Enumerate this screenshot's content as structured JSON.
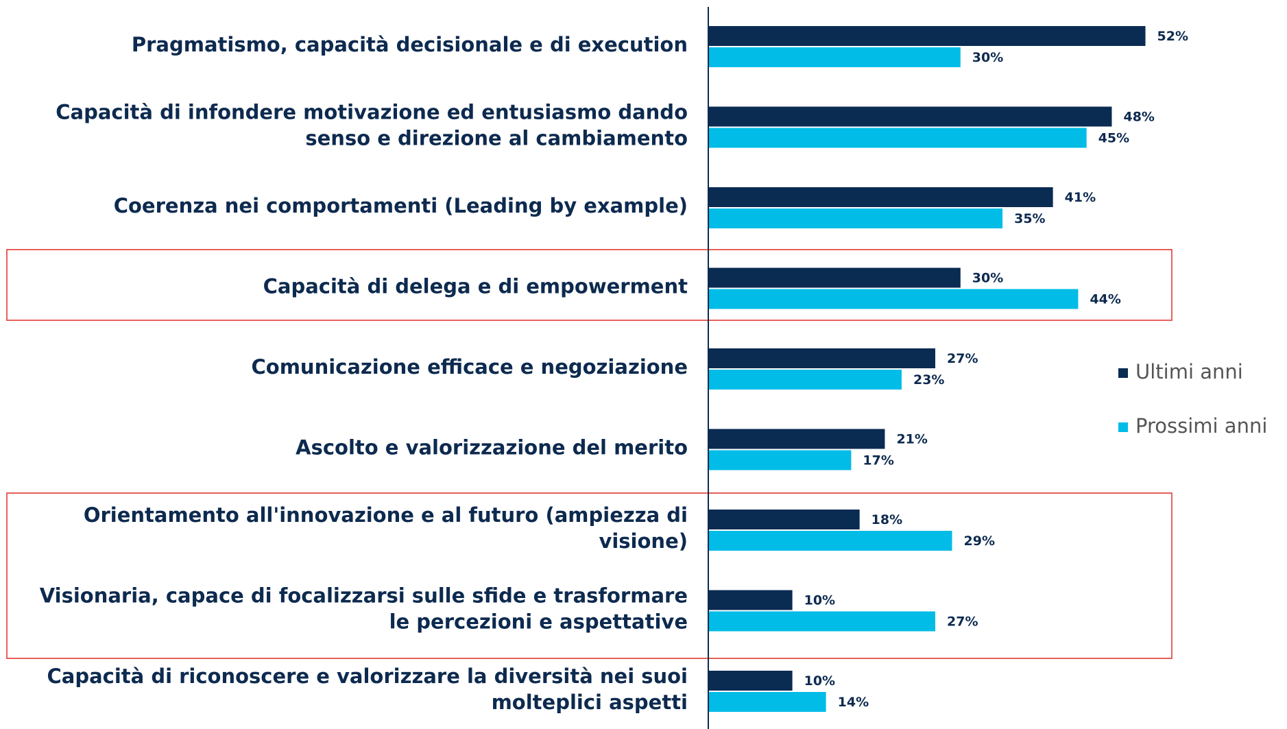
{
  "chart_data": {
    "type": "bar",
    "orientation": "horizontal",
    "categories": [
      [
        "Pragmatismo, capacità decisionale e di execution"
      ],
      [
        "Capacità di infondere motivazione ed entusiasmo dando",
        "senso e direzione al cambiamento"
      ],
      [
        "Coerenza nei comportamenti (Leading by example)"
      ],
      [
        "Capacità di delega e di empowerment"
      ],
      [
        "Comunicazione efficace e negoziazione"
      ],
      [
        "Ascolto e valorizzazione del merito"
      ],
      [
        "Orientamento all'innovazione e al futuro (ampiezza di",
        "visione)"
      ],
      [
        "Visionaria, capace di focalizzarsi sulle sfide e trasformare",
        "le percezioni e aspettative"
      ],
      [
        "Capacità di riconoscere e valorizzare la diversità nei suoi",
        "molteplici aspetti"
      ]
    ],
    "series": [
      {
        "name": "Ultimi anni",
        "color": "#0a2b52",
        "values": [
          52,
          48,
          41,
          30,
          27,
          21,
          18,
          10,
          10
        ],
        "value_labels": [
          "52%",
          "48%",
          "41%",
          "30%",
          "27%",
          "21%",
          "18%",
          "10%",
          "10%"
        ]
      },
      {
        "name": "Prossimi anni",
        "color": "#00bce7",
        "values": [
          30,
          45,
          35,
          44,
          23,
          17,
          29,
          27,
          14
        ],
        "value_labels": [
          "30%",
          "45%",
          "35%",
          "44%",
          "23%",
          "17%",
          "29%",
          "27%",
          "14%"
        ]
      }
    ],
    "legend": "right"
  }
}
